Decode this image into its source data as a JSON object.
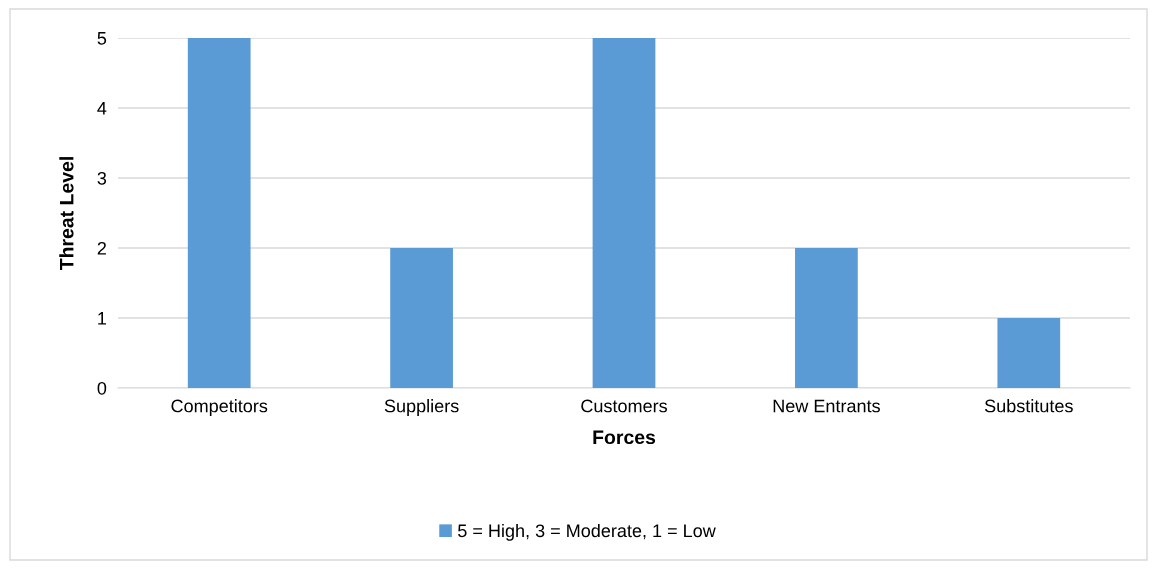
{
  "chart_data": {
    "type": "bar",
    "xlabel": "Forces",
    "ylabel": "Threat Level",
    "categories": [
      "Competitors",
      "Suppliers",
      "Customers",
      "New Entrants",
      "Substitutes"
    ],
    "series": [
      {
        "name": "5 = High, 3 = Moderate, 1 = Low",
        "color": "#5b9bd5",
        "values": [
          5,
          2,
          5,
          2,
          1
        ]
      }
    ],
    "ylim": [
      0,
      5
    ],
    "yticks": [
      0,
      1,
      2,
      3,
      4,
      5
    ],
    "grid": "y",
    "legend": "bottom"
  }
}
